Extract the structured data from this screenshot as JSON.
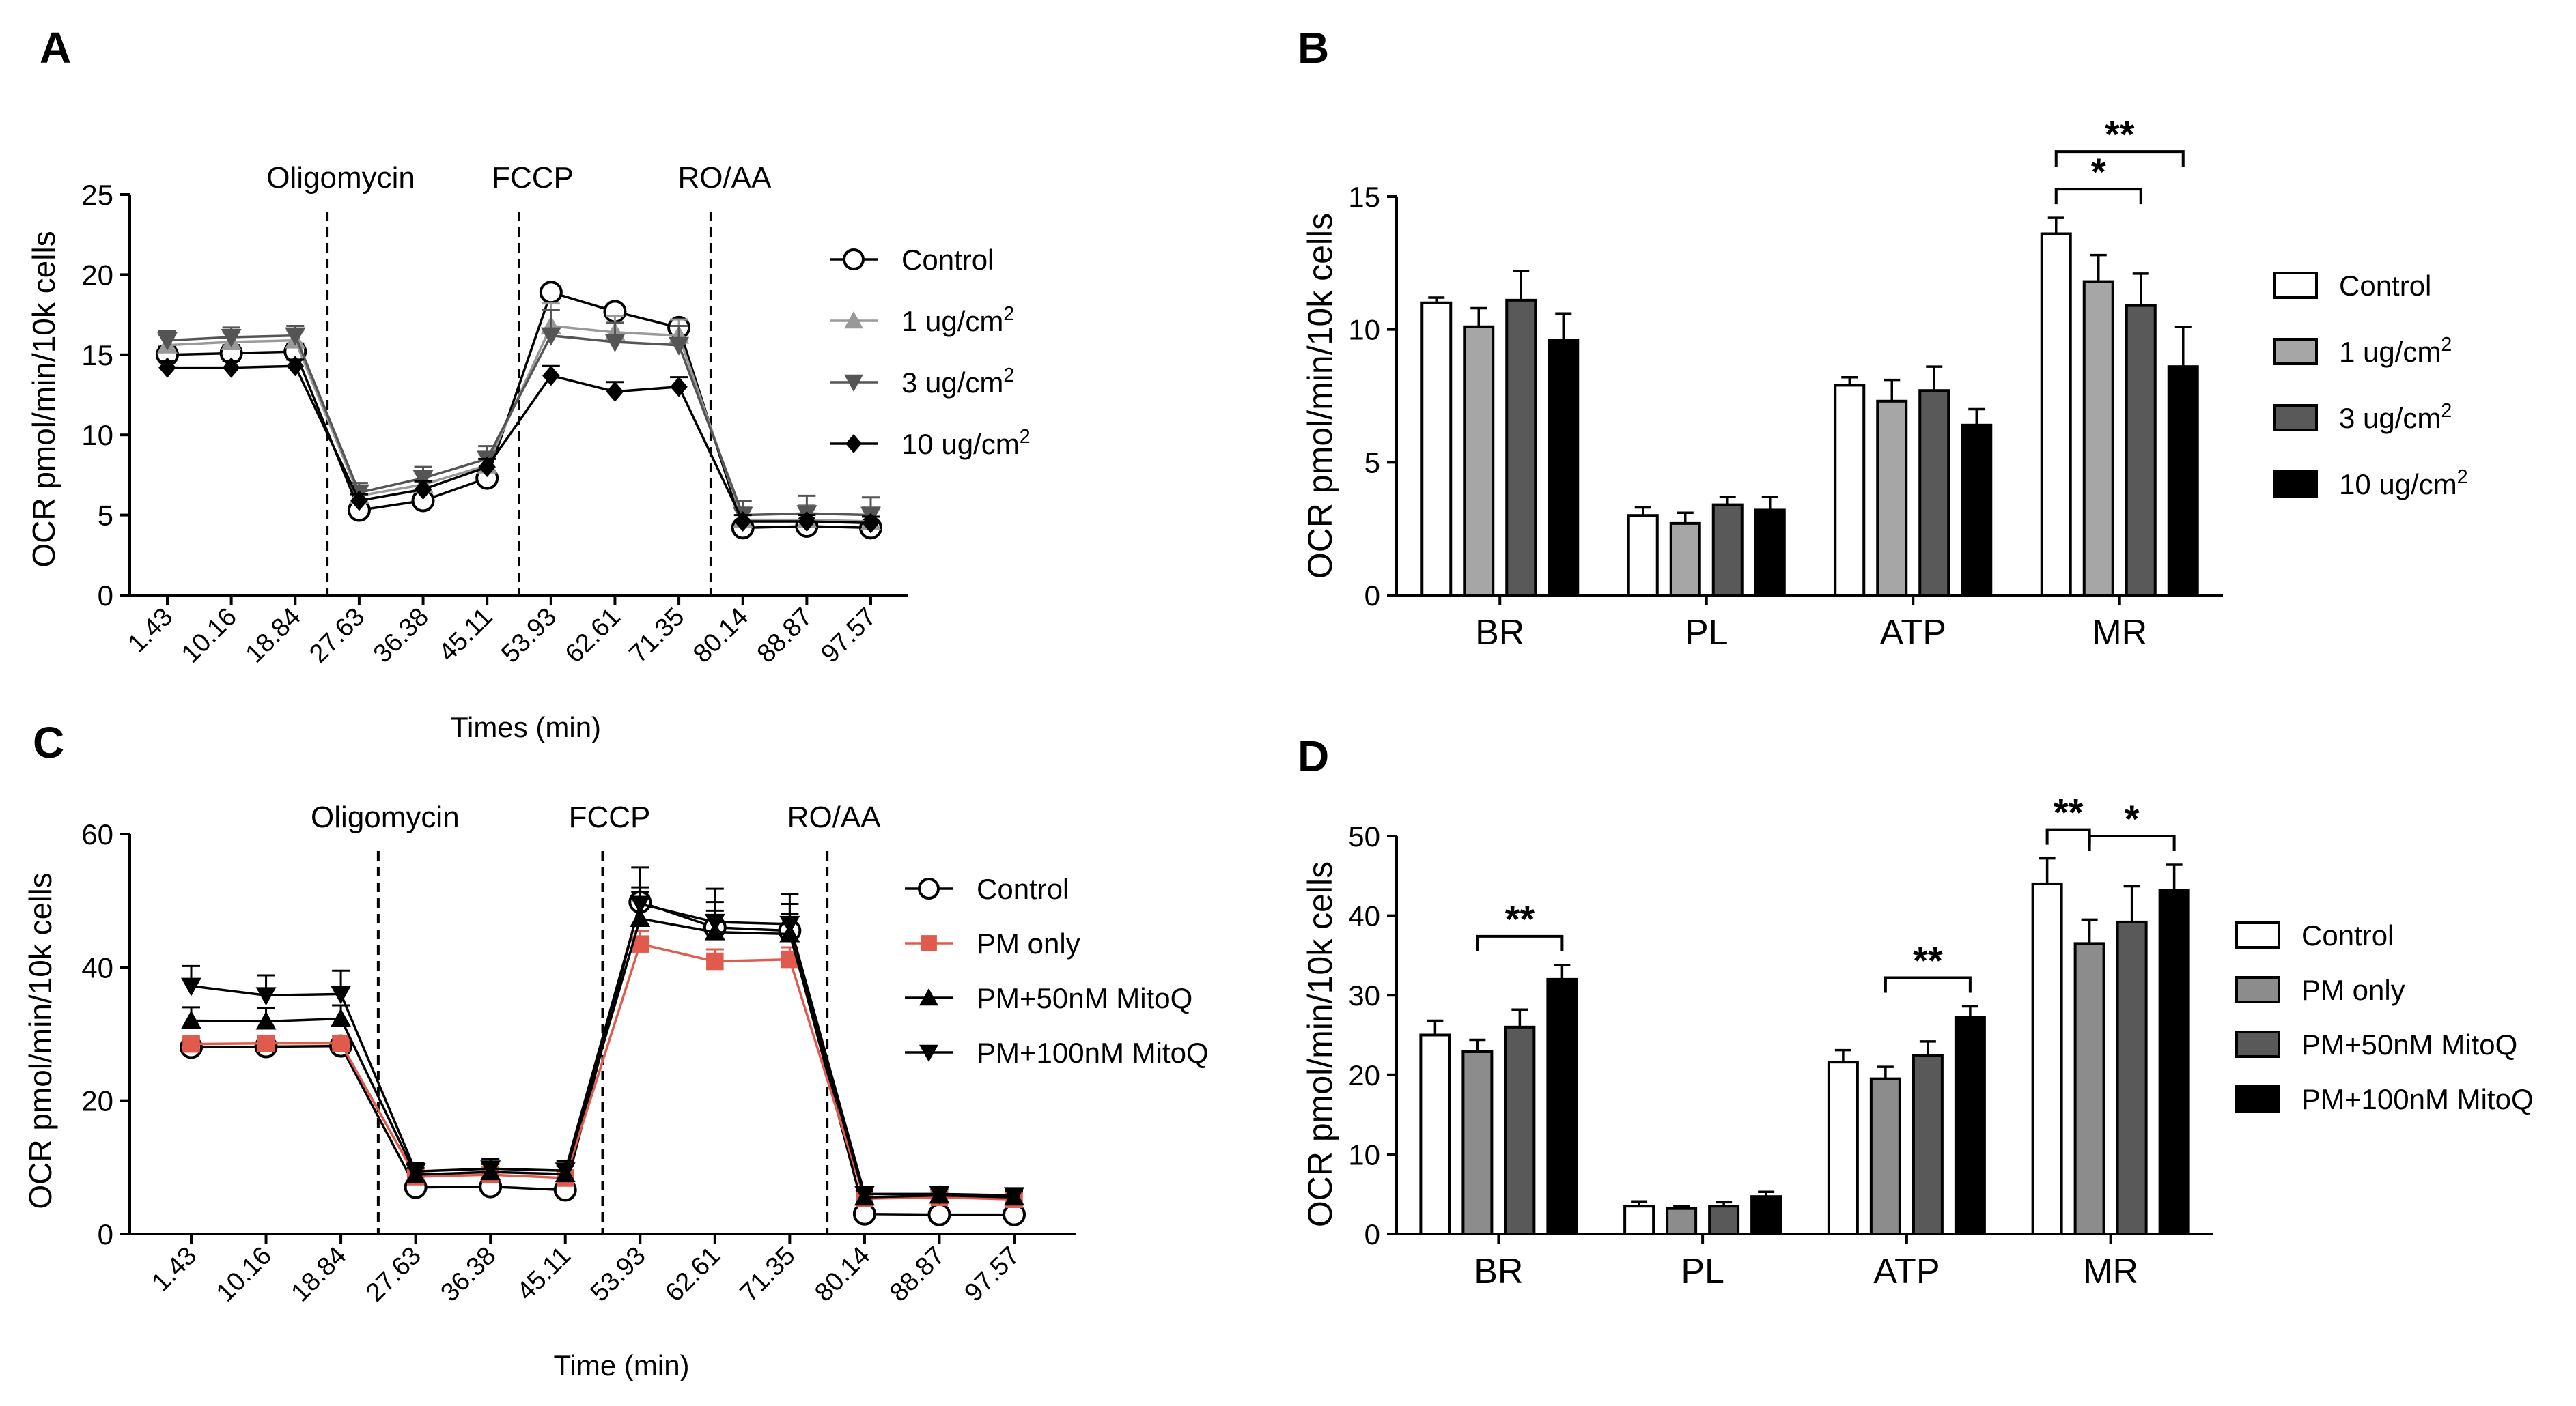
{
  "colors": {
    "black": "#000000",
    "white": "#ffffff",
    "light_gray": "#a6a6a6",
    "mid_gray": "#8c8c8c",
    "dark_gray": "#595959",
    "line_gray": "#999999",
    "line_dark": "#555555",
    "red": "#e05a4e"
  },
  "chart_data": [
    {
      "panel": "A",
      "type": "line",
      "ylabel": "OCR pmol/min/10k cells",
      "xlabel": "Times (min)",
      "x": [
        "1.43",
        "10.16",
        "18.84",
        "27.63",
        "36.38",
        "45.11",
        "53.93",
        "62.61",
        "71.35",
        "80.14",
        "88.87",
        "97.57"
      ],
      "ylim": [
        0,
        25
      ],
      "yticks": [
        "0",
        "5",
        "10",
        "15",
        "20",
        "25"
      ],
      "injections": [
        {
          "label": "Oligomycin",
          "after_index": 2.5
        },
        {
          "label": "FCCP",
          "after_index": 5.5
        },
        {
          "label": "RO/AA",
          "after_index": 8.5
        }
      ],
      "legend_position": "right",
      "series": [
        {
          "name": "Control",
          "marker": "circle-open",
          "color": "#000000",
          "values": [
            15.0,
            15.1,
            15.2,
            5.3,
            5.9,
            7.3,
            18.9,
            17.7,
            16.7,
            4.2,
            4.3,
            4.2
          ],
          "errors": [
            0.5,
            0.5,
            0.5,
            0.3,
            0.3,
            0.4,
            0.4,
            0.4,
            0.5,
            0.3,
            0.3,
            0.3
          ]
        },
        {
          "name": "1 ug/cm²",
          "marker": "triangle-up",
          "color": "#999999",
          "values": [
            15.6,
            15.8,
            15.9,
            6.2,
            6.9,
            8.1,
            16.8,
            16.4,
            16.2,
            4.7,
            4.7,
            4.6
          ],
          "errors": [
            0.6,
            0.6,
            0.6,
            0.6,
            0.7,
            0.7,
            1.4,
            1.0,
            1.0,
            0.8,
            0.9,
            0.9
          ]
        },
        {
          "name": "3 ug/cm²",
          "marker": "triangle-down",
          "color": "#555555",
          "values": [
            15.9,
            16.1,
            16.2,
            6.4,
            7.3,
            8.5,
            16.2,
            15.8,
            15.6,
            5.0,
            5.1,
            5.0
          ],
          "errors": [
            0.6,
            0.6,
            0.6,
            0.6,
            0.7,
            0.8,
            1.6,
            1.2,
            1.2,
            0.9,
            1.1,
            1.1
          ]
        },
        {
          "name": "10 ug/cm²",
          "marker": "diamond",
          "color": "#000000",
          "values": [
            14.2,
            14.2,
            14.3,
            5.9,
            6.6,
            8.0,
            13.7,
            12.7,
            13.0,
            4.6,
            4.6,
            4.5
          ],
          "errors": [
            0.4,
            0.4,
            0.4,
            0.4,
            0.5,
            0.5,
            0.6,
            0.6,
            0.6,
            0.4,
            0.4,
            0.4
          ]
        }
      ]
    },
    {
      "panel": "B",
      "type": "bar",
      "ylabel": "OCR pmol/min/10k cells",
      "categories": [
        "BR",
        "PL",
        "ATP",
        "MR"
      ],
      "ylim": [
        0,
        15
      ],
      "yticks": [
        "0",
        "5",
        "10",
        "15"
      ],
      "legend_position": "right",
      "series": [
        {
          "name": "Control",
          "fill": "#ffffff",
          "values": [
            11.0,
            3.0,
            7.9,
            13.6
          ],
          "errors": [
            0.2,
            0.3,
            0.3,
            0.6
          ]
        },
        {
          "name": "1 ug/cm²",
          "fill": "#a6a6a6",
          "values": [
            10.1,
            2.7,
            7.3,
            11.8
          ],
          "errors": [
            0.7,
            0.4,
            0.8,
            1.0
          ]
        },
        {
          "name": "3 ug/cm²",
          "fill": "#595959",
          "values": [
            11.1,
            3.4,
            7.7,
            10.9
          ],
          "errors": [
            1.1,
            0.3,
            0.9,
            1.2
          ]
        },
        {
          "name": "10 ug/cm²",
          "fill": "#000000",
          "values": [
            9.6,
            3.2,
            6.4,
            8.6
          ],
          "errors": [
            1.0,
            0.5,
            0.6,
            1.5
          ]
        }
      ],
      "significance": [
        {
          "category_index": 3,
          "from_series": 0,
          "to_series": 3,
          "label": "**",
          "level": 2
        },
        {
          "category_index": 3,
          "from_series": 0,
          "to_series": 2,
          "label": "*",
          "level": 1
        }
      ]
    },
    {
      "panel": "C",
      "type": "line",
      "ylabel": "OCR pmol/min/10k cells",
      "xlabel": "Time (min)",
      "x": [
        "1.43",
        "10.16",
        "18.84",
        "27.63",
        "36.38",
        "45.11",
        "53.93",
        "62.61",
        "71.35",
        "80.14",
        "88.87",
        "97.57"
      ],
      "ylim": [
        0,
        60
      ],
      "yticks": [
        "0",
        "20",
        "40",
        "60"
      ],
      "injections": [
        {
          "label": "Oligomycin",
          "after_index": 2.5
        },
        {
          "label": "FCCP",
          "after_index": 5.5
        },
        {
          "label": "RO/AA",
          "after_index": 8.5
        }
      ],
      "legend_position": "right",
      "series": [
        {
          "name": "Control",
          "marker": "circle-open",
          "color": "#000000",
          "values": [
            28.0,
            28.1,
            28.2,
            7.0,
            7.1,
            6.6,
            49.8,
            46.0,
            45.5,
            3.0,
            2.9,
            2.9
          ],
          "errors": [
            1.0,
            1.0,
            1.0,
            1.0,
            1.0,
            1.0,
            2.2,
            2.5,
            2.5,
            0.8,
            0.8,
            0.8
          ]
        },
        {
          "name": "PM only",
          "marker": "square",
          "color": "#e05a4e",
          "values": [
            28.5,
            28.6,
            28.6,
            8.6,
            8.9,
            8.4,
            43.5,
            40.9,
            41.2,
            5.3,
            5.5,
            5.2
          ],
          "errors": [
            1.0,
            1.0,
            1.0,
            1.0,
            1.2,
            1.0,
            2.0,
            1.8,
            1.8,
            1.0,
            1.0,
            1.0
          ]
        },
        {
          "name": "PM+50nM MitoQ",
          "marker": "triangle-up",
          "color": "#000000",
          "values": [
            32.0,
            31.9,
            32.3,
            8.9,
            9.3,
            9.0,
            47.3,
            45.3,
            45.0,
            5.5,
            5.8,
            5.5
          ],
          "errors": [
            2.0,
            2.0,
            2.0,
            1.0,
            1.2,
            1.2,
            4.0,
            4.5,
            4.5,
            1.0,
            1.0,
            1.0
          ]
        },
        {
          "name": "PM+100nM MitoQ",
          "marker": "triangle-down",
          "color": "#000000",
          "values": [
            37.2,
            35.8,
            36.0,
            9.4,
            9.8,
            9.5,
            49.5,
            46.8,
            46.5,
            6.0,
            6.0,
            5.8
          ],
          "errors": [
            3.0,
            3.0,
            3.5,
            1.2,
            1.5,
            1.5,
            5.5,
            5.0,
            4.5,
            1.0,
            1.0,
            1.0
          ]
        }
      ]
    },
    {
      "panel": "D",
      "type": "bar",
      "ylabel": "OCR pmol/min/10k cells",
      "categories": [
        "BR",
        "PL",
        "ATP",
        "MR"
      ],
      "ylim": [
        0,
        50
      ],
      "yticks": [
        "0",
        "10",
        "20",
        "30",
        "40",
        "50"
      ],
      "legend_position": "right",
      "series": [
        {
          "name": "Control",
          "fill": "#ffffff",
          "values": [
            25.0,
            3.5,
            21.6,
            44.0
          ],
          "errors": [
            1.8,
            0.6,
            1.5,
            3.2
          ]
        },
        {
          "name": "PM only",
          "fill": "#8c8c8c",
          "values": [
            22.9,
            3.2,
            19.5,
            36.5
          ],
          "errors": [
            1.5,
            0.3,
            1.5,
            3.0
          ]
        },
        {
          "name": "PM+50nM MitoQ",
          "fill": "#595959",
          "values": [
            26.0,
            3.5,
            22.4,
            39.2
          ],
          "errors": [
            2.2,
            0.5,
            1.8,
            4.5
          ]
        },
        {
          "name": "PM+100nM MitoQ",
          "fill": "#000000",
          "values": [
            32.0,
            4.7,
            27.2,
            43.2
          ],
          "errors": [
            1.8,
            0.6,
            1.4,
            3.2
          ]
        }
      ],
      "significance": [
        {
          "category_index": 0,
          "from_series": 1,
          "to_series": 3,
          "label": "**",
          "level": 1
        },
        {
          "category_index": 2,
          "from_series": 1,
          "to_series": 3,
          "label": "**",
          "level": 1
        },
        {
          "category_index": 3,
          "from_series": 0,
          "to_series": 1,
          "label": "**",
          "level": 1
        },
        {
          "category_index": 3,
          "from_series": 1,
          "to_series": 3,
          "label": "*",
          "level": 1
        }
      ]
    }
  ]
}
